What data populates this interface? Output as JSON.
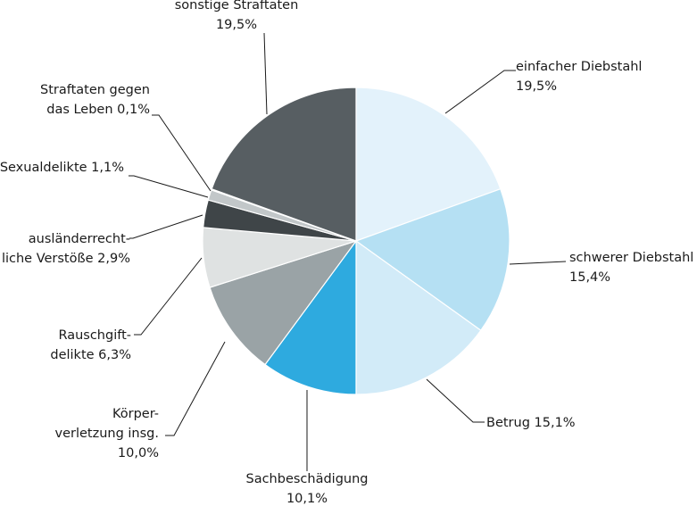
{
  "chart_data": {
    "type": "pie",
    "title": "",
    "unit": "%",
    "slices": [
      {
        "label": "einfacher Diebstahl",
        "value": 19.5,
        "color": "#e3f2fb"
      },
      {
        "label": "schwerer Diebstahl",
        "value": 15.4,
        "color": "#b5e0f3"
      },
      {
        "label": "Betrug",
        "value": 15.1,
        "color": "#d2ebf8"
      },
      {
        "label": "Sachbeschädigung",
        "value": 10.1,
        "color": "#2eaadf"
      },
      {
        "label": "Körperverletzung insg.",
        "value": 10.0,
        "color": "#9aa3a6"
      },
      {
        "label": "Rauschgiftdelikte",
        "value": 6.3,
        "color": "#dfe2e2"
      },
      {
        "label": "ausländerrechtliche Verstöße",
        "value": 2.9,
        "color": "#3f4548"
      },
      {
        "label": "Sexualdelikte",
        "value": 1.1,
        "color": "#c2c7c9"
      },
      {
        "label": "Straftaten gegen das Leben",
        "value": 0.1,
        "color": "#3c3aa0"
      },
      {
        "label": "sonstige Straftaten",
        "value": 19.5,
        "color": "#575e62"
      }
    ],
    "labels": [
      {
        "lines": [
          "einfacher Diebstahl",
          "19,5%"
        ]
      },
      {
        "lines": [
          "schwerer Diebstahl",
          "15,4%"
        ]
      },
      {
        "lines": [
          "Betrug 15,1%"
        ]
      },
      {
        "lines": [
          "Sachbeschädigung",
          "10,1%"
        ]
      },
      {
        "lines": [
          "Körper-",
          "verletzung insg.",
          "10,0%"
        ]
      },
      {
        "lines": [
          "Rauschgift-",
          "delikte 6,3%"
        ]
      },
      {
        "lines": [
          "ausländerrecht-",
          "liche Verstöße 2,9%"
        ]
      },
      {
        "lines": [
          "Sexualdelikte 1,1%"
        ]
      },
      {
        "lines": [
          "Straftaten gegen",
          "das Leben 0,1%"
        ]
      },
      {
        "lines": [
          "sonstige Straftaten",
          "19,5%"
        ]
      }
    ]
  }
}
